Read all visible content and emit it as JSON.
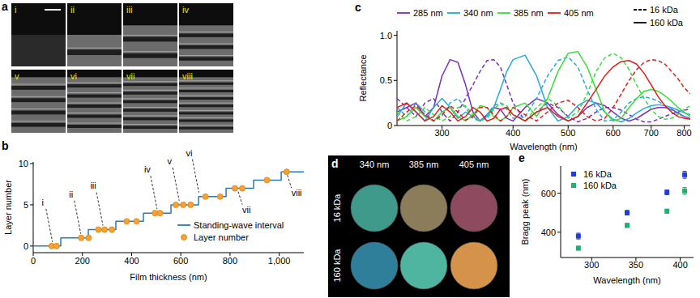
{
  "panel_a": {
    "label": "a",
    "images": [
      "i",
      "ii",
      "iii",
      "iv",
      "v",
      "vi",
      "vii",
      "viii"
    ]
  },
  "panel_d": {
    "label": "d",
    "columns": [
      "340 nm",
      "385 nm",
      "405 nm"
    ],
    "rows": [
      "16 kDa",
      "160 kDa"
    ],
    "colors": [
      [
        "#3f9a8c",
        "#8c7d5a",
        "#8e4a5e"
      ],
      [
        "#2f7f9a",
        "#4fb5a0",
        "#d4924a"
      ]
    ]
  },
  "chart_data": [
    {
      "panel": "b",
      "type": "line",
      "x_label": "Film thickness (nm)",
      "y_label": "Layer number",
      "xlim": [
        0,
        1100
      ],
      "ylim": [
        -0.8,
        10.2
      ],
      "xticks": [
        0,
        200,
        400,
        600,
        800,
        {
          "value": 1000,
          "label": "1,000"
        }
      ],
      "yticks": [
        0,
        5,
        10
      ],
      "legend": "lower right",
      "series": [
        {
          "name": "Standing-wave interval",
          "type": "line",
          "color": "#2a7ab8",
          "line_style": "solid",
          "x": [
            0,
            112,
            112,
            224,
            224,
            336,
            336,
            448,
            448,
            560,
            560,
            672,
            672,
            784,
            784,
            896,
            896,
            1008,
            1008,
            1100
          ],
          "values": [
            0,
            0,
            1,
            1,
            2,
            2,
            3,
            3,
            4,
            4,
            5,
            5,
            6,
            6,
            7,
            7,
            8,
            8,
            9,
            9
          ]
        },
        {
          "name": "Layer number",
          "type": "scatter",
          "color": "#f4a233",
          "marker": "circle",
          "x": [
            75,
            95,
            195,
            225,
            265,
            290,
            320,
            380,
            420,
            495,
            515,
            580,
            610,
            640,
            700,
            760,
            820,
            850,
            950,
            1030
          ],
          "values": [
            0,
            0,
            1,
            1,
            2,
            2,
            2,
            3,
            3,
            4,
            4,
            5,
            5,
            5,
            6,
            6,
            7,
            7,
            8,
            9
          ]
        }
      ],
      "annotations": [
        {
          "text": "i",
          "x": 85,
          "y": 0
        },
        {
          "text": "ii",
          "x": 200,
          "y": 1
        },
        {
          "text": "iii",
          "x": 290,
          "y": 2
        },
        {
          "text": "iv",
          "x": 510,
          "y": 4
        },
        {
          "text": "v",
          "x": 600,
          "y": 5
        },
        {
          "text": "vi",
          "x": 680,
          "y": 6
        },
        {
          "text": "vii",
          "x": 830,
          "y": 7
        },
        {
          "text": "viii",
          "x": 1030,
          "y": 9
        }
      ]
    },
    {
      "panel": "c",
      "type": "line",
      "x_label": "Wavelength (nm)",
      "y_label": "Reflectance",
      "log": "x",
      "xlim": [
        250,
        820
      ],
      "ylim": [
        0,
        1.05
      ],
      "xticks": [
        300,
        400,
        500,
        600,
        700,
        800
      ],
      "yticks": [
        0,
        0.5,
        {
          "value": 1,
          "label": "1.0"
        }
      ],
      "legend": "top",
      "x": [
        250,
        260,
        270,
        280,
        290,
        300,
        310,
        320,
        330,
        340,
        350,
        360,
        370,
        380,
        390,
        400,
        420,
        440,
        460,
        480,
        500,
        520,
        540,
        560,
        580,
        600,
        620,
        640,
        660,
        680,
        700,
        720,
        740,
        760,
        780,
        800,
        820
      ],
      "series": [
        {
          "name": "285 nm",
          "group": "16 kDa",
          "color": "#7b2fbe",
          "line_style": "dashed",
          "values": [
            0.3,
            0.2,
            0.1,
            0.25,
            0.3,
            0.15,
            0.05,
            0.15,
            0.3,
            0.45,
            0.6,
            0.72,
            0.73,
            0.65,
            0.45,
            0.25,
            0.05,
            0.15,
            0.25,
            0.2,
            0.1,
            0.04,
            0.08,
            0.15,
            0.2,
            0.2,
            0.17,
            0.12,
            0.07,
            0.04,
            0.04,
            0.07,
            0.1,
            0.13,
            0.15,
            0.17,
            0.18
          ]
        },
        {
          "name": "285 nm",
          "group": "160 kDa",
          "color": "#7b2fbe",
          "line_style": "solid",
          "values": [
            0.15,
            0.2,
            0.25,
            0.1,
            0.2,
            0.55,
            0.73,
            0.7,
            0.45,
            0.15,
            0.05,
            0.12,
            0.2,
            0.18,
            0.08,
            0.05,
            0.2,
            0.3,
            0.25,
            0.12,
            0.05,
            0.1,
            0.2,
            0.25,
            0.22,
            0.15,
            0.08,
            0.05,
            0.08,
            0.13,
            0.18,
            0.2,
            0.2,
            0.18,
            0.14,
            0.1,
            0.08
          ]
        },
        {
          "name": "340 nm",
          "group": "16 kDa",
          "color": "#29a9e0",
          "line_style": "dashed",
          "values": [
            0.2,
            0.1,
            0.25,
            0.15,
            0.05,
            0.1,
            0.25,
            0.3,
            0.2,
            0.08,
            0.05,
            0.12,
            0.22,
            0.25,
            0.18,
            0.08,
            0.1,
            0.3,
            0.55,
            0.72,
            0.76,
            0.65,
            0.4,
            0.18,
            0.05,
            0.06,
            0.15,
            0.25,
            0.3,
            0.32,
            0.3,
            0.27,
            0.22,
            0.17,
            0.13,
            0.1,
            0.08
          ]
        },
        {
          "name": "340 nm",
          "group": "160 kDa",
          "color": "#29a9e0",
          "line_style": "solid",
          "values": [
            0.1,
            0.25,
            0.15,
            0.05,
            0.2,
            0.3,
            0.2,
            0.08,
            0.15,
            0.1,
            0.05,
            0.1,
            0.2,
            0.4,
            0.6,
            0.73,
            0.78,
            0.55,
            0.2,
            0.05,
            0.1,
            0.22,
            0.28,
            0.25,
            0.15,
            0.07,
            0.04,
            0.08,
            0.14,
            0.19,
            0.22,
            0.23,
            0.22,
            0.2,
            0.17,
            0.14,
            0.12
          ]
        },
        {
          "name": "385 nm",
          "group": "16 kDa",
          "color": "#3ddc3d",
          "line_style": "dashed",
          "values": [
            0.15,
            0.05,
            0.1,
            0.2,
            0.12,
            0.05,
            0.1,
            0.2,
            0.22,
            0.12,
            0.05,
            0.08,
            0.18,
            0.25,
            0.22,
            0.12,
            0.05,
            0.2,
            0.3,
            0.22,
            0.08,
            0.15,
            0.35,
            0.6,
            0.75,
            0.8,
            0.75,
            0.62,
            0.45,
            0.3,
            0.18,
            0.1,
            0.07,
            0.08,
            0.12,
            0.18,
            0.22
          ]
        },
        {
          "name": "385 nm",
          "group": "160 kDa",
          "color": "#3ddc3d",
          "line_style": "solid",
          "values": [
            0.05,
            0.1,
            0.2,
            0.1,
            0.05,
            0.15,
            0.2,
            0.1,
            0.05,
            0.12,
            0.22,
            0.2,
            0.1,
            0.05,
            0.1,
            0.2,
            0.25,
            0.1,
            0.3,
            0.6,
            0.8,
            0.82,
            0.65,
            0.4,
            0.15,
            0.05,
            0.08,
            0.2,
            0.3,
            0.38,
            0.4,
            0.38,
            0.33,
            0.27,
            0.2,
            0.15,
            0.1
          ]
        },
        {
          "name": "405 nm",
          "group": "16 kDa",
          "color": "#e0201b",
          "line_style": "dashed",
          "values": [
            0.05,
            0.15,
            0.22,
            0.12,
            0.05,
            0.12,
            0.22,
            0.15,
            0.06,
            0.1,
            0.2,
            0.2,
            0.12,
            0.05,
            0.1,
            0.2,
            0.12,
            0.05,
            0.15,
            0.25,
            0.28,
            0.2,
            0.1,
            0.05,
            0.08,
            0.2,
            0.35,
            0.5,
            0.62,
            0.7,
            0.73,
            0.72,
            0.68,
            0.6,
            0.52,
            0.42,
            0.35
          ]
        },
        {
          "name": "405 nm",
          "group": "160 kDa",
          "color": "#e0201b",
          "line_style": "solid",
          "values": [
            0.2,
            0.25,
            0.15,
            0.05,
            0.1,
            0.22,
            0.15,
            0.05,
            0.1,
            0.2,
            0.15,
            0.05,
            0.08,
            0.18,
            0.2,
            0.12,
            0.05,
            0.15,
            0.2,
            0.1,
            0.05,
            0.1,
            0.25,
            0.4,
            0.55,
            0.65,
            0.71,
            0.72,
            0.68,
            0.58,
            0.45,
            0.32,
            0.22,
            0.15,
            0.1,
            0.08,
            0.07
          ]
        }
      ]
    },
    {
      "panel": "e",
      "type": "scatter",
      "x_label": "Wavelength (nm)",
      "y_label": "Bragg peak (nm)",
      "xlim": [
        265,
        415
      ],
      "ylim": [
        270,
        740
      ],
      "xticks": [
        300,
        350,
        400
      ],
      "yticks": [
        400,
        600
      ],
      "legend": "upper left",
      "x": [
        285,
        340,
        385,
        405
      ],
      "series": [
        {
          "name": "16 kDa",
          "color": "#1f3fd6",
          "marker": "square",
          "values": [
            380,
            500,
            605,
            695
          ],
          "errors": [
            15,
            12,
            12,
            18
          ]
        },
        {
          "name": "160 kDa",
          "color": "#20b070",
          "marker": "square",
          "values": [
            318,
            435,
            508,
            612
          ],
          "errors": [
            10,
            10,
            10,
            18
          ]
        }
      ]
    }
  ]
}
